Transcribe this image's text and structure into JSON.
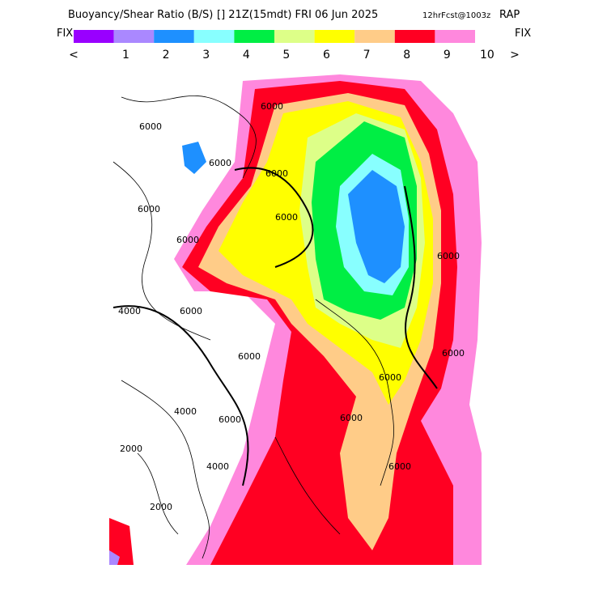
{
  "header": {
    "title": "Buoyancy/Shear Ratio (B/S)",
    "time": "[] 21Z(15mdt) FRI 06 Jun 2025",
    "forecast": "12hrFcst@1003z",
    "model": "RAP"
  },
  "colorbar": {
    "left": "FIX",
    "right": "FIX",
    "colors": [
      "#9900ff",
      "#aa88ff",
      "#1e90ff",
      "#88ffff",
      "#00ee44",
      "#ddff88",
      "#ffff00",
      "#ffcc88",
      "#ff0022",
      "#ff88dd"
    ],
    "labels": [
      "<",
      "1",
      "2",
      "3",
      "4",
      "5",
      "6",
      "7",
      "8",
      "9",
      "10",
      ">"
    ]
  },
  "contour_labels": [
    "6000",
    "6000",
    "6000",
    "6000",
    "6000",
    "6000",
    "6000",
    "4000",
    "6000",
    "6000",
    "6000",
    "4000",
    "2000",
    "6000",
    "6000",
    "6000",
    "2000",
    "4000",
    "6000",
    "6000"
  ]
}
